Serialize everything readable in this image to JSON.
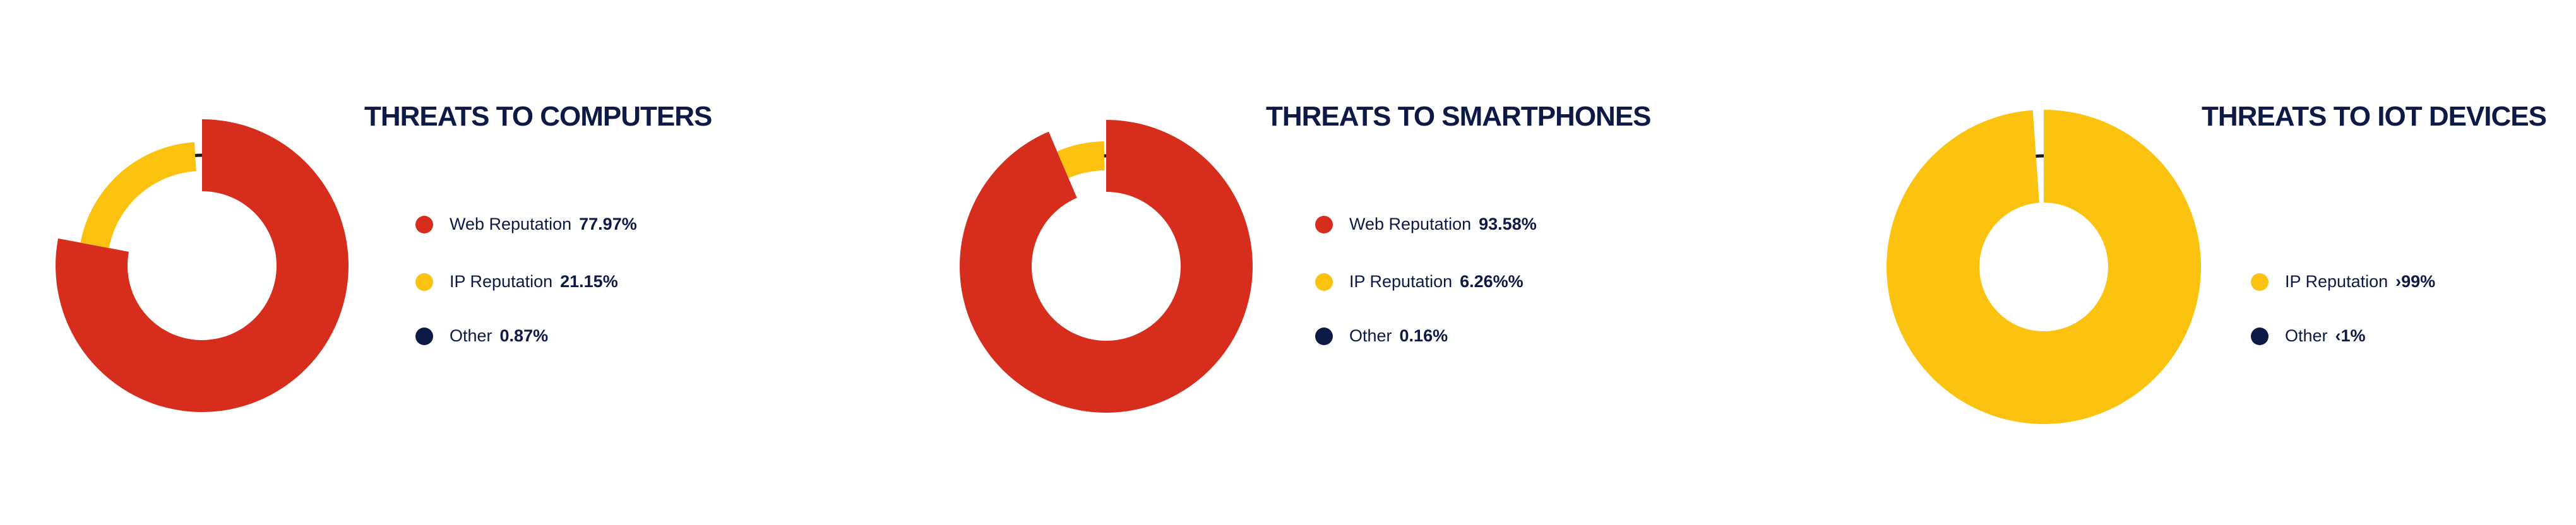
{
  "colors": {
    "web": "#d62d1d",
    "ip": "#fbc20f",
    "other": "#0d1a45"
  },
  "chart_data": [
    {
      "type": "pie",
      "title": "THREATS TO COMPUTERS",
      "slices": [
        {
          "label": "Web Reputation",
          "value": 77.97,
          "display": "77.97%",
          "color": "#d62d1d"
        },
        {
          "label": "IP Reputation",
          "value": 21.15,
          "display": "21.15%",
          "color": "#fbc20f"
        },
        {
          "label": "Other",
          "value": 0.87,
          "display": "0.87%",
          "color": "#0d1a45"
        }
      ],
      "legend": "right"
    },
    {
      "type": "pie",
      "title": "THREATS TO SMARTPHONES",
      "slices": [
        {
          "label": "Web Reputation",
          "value": 93.58,
          "display": "93.58%",
          "color": "#d62d1d"
        },
        {
          "label": "IP Reputation",
          "value": 6.26,
          "display": "6.26%%",
          "color": "#fbc20f"
        },
        {
          "label": "Other",
          "value": 0.16,
          "display": "0.16%",
          "color": "#0d1a45"
        }
      ],
      "legend": "right"
    },
    {
      "type": "pie",
      "title": "THREATS TO IOT DEVICES",
      "slices": [
        {
          "label": "IP Reputation",
          "value": 99,
          "display": "›99%",
          "color": "#fbc20f"
        },
        {
          "label": "Other",
          "value": 1,
          "display": "‹1%",
          "color": "#0d1a45"
        }
      ],
      "legend": "right"
    }
  ]
}
